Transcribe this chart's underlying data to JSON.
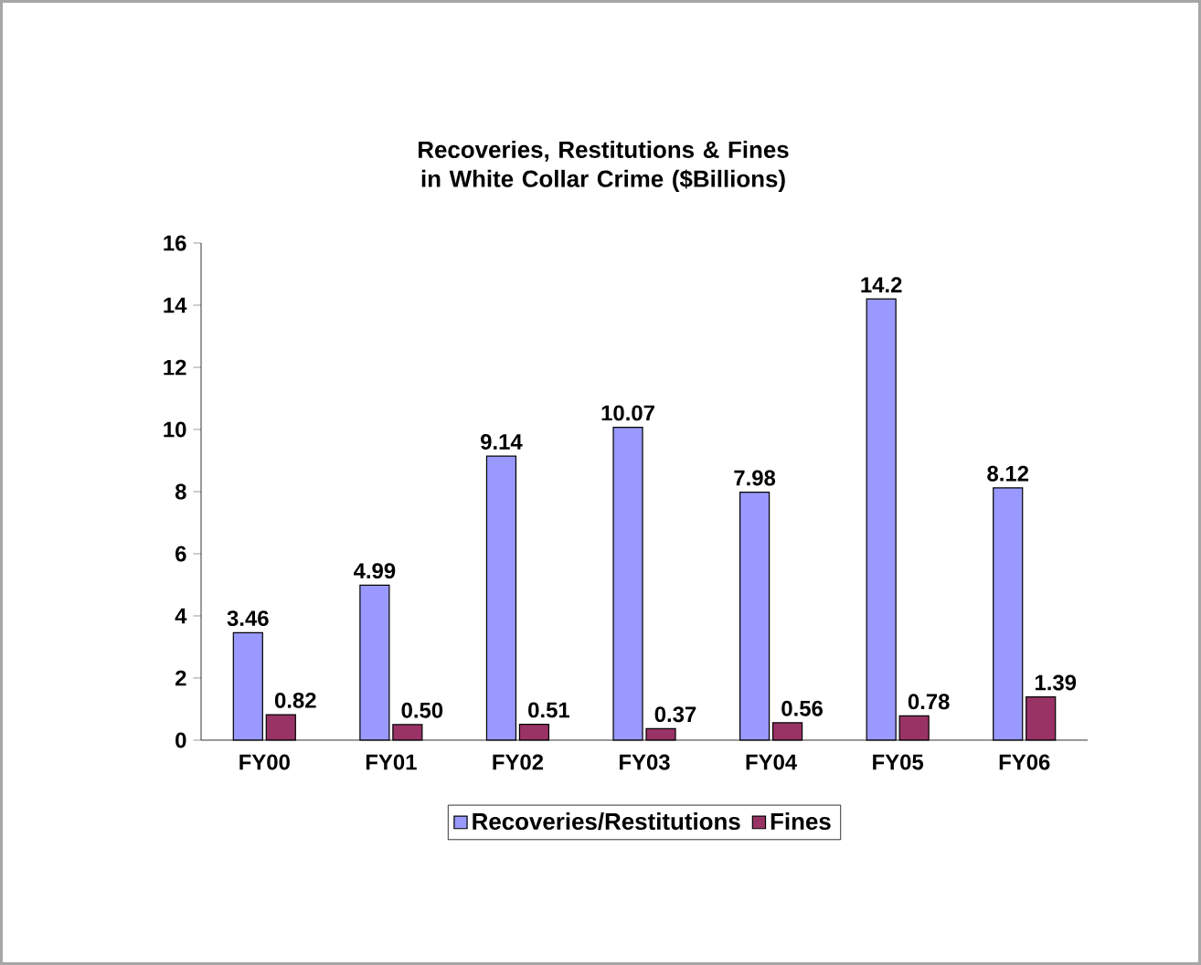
{
  "chart_data": {
    "type": "bar",
    "title": "Recoveries, Restitutions & Fines in White Collar Crime ($Billions)",
    "categories": [
      "FY00",
      "FY01",
      "FY02",
      "FY03",
      "FY04",
      "FY05",
      "FY06"
    ],
    "series": [
      {
        "name": "Recoveries/Restitutions",
        "color": "#9999ff",
        "values": [
          3.46,
          4.99,
          9.14,
          10.07,
          7.98,
          14.2,
          8.12
        ],
        "value_labels": [
          "3.46",
          "4.99",
          "9.14",
          "10.07",
          "7.98",
          "14.2",
          "8.12"
        ]
      },
      {
        "name": "Fines",
        "color": "#993366",
        "values": [
          0.82,
          0.5,
          0.51,
          0.37,
          0.56,
          0.78,
          1.39
        ],
        "value_labels": [
          "0.82",
          "0.50",
          "0.51",
          "0.37",
          "0.56",
          "0.78",
          "1.39"
        ]
      }
    ],
    "ylim": [
      0,
      16
    ],
    "yticks": [
      0,
      2,
      4,
      6,
      8,
      10,
      12,
      14,
      16
    ],
    "grid": false,
    "legend": "bottom"
  }
}
